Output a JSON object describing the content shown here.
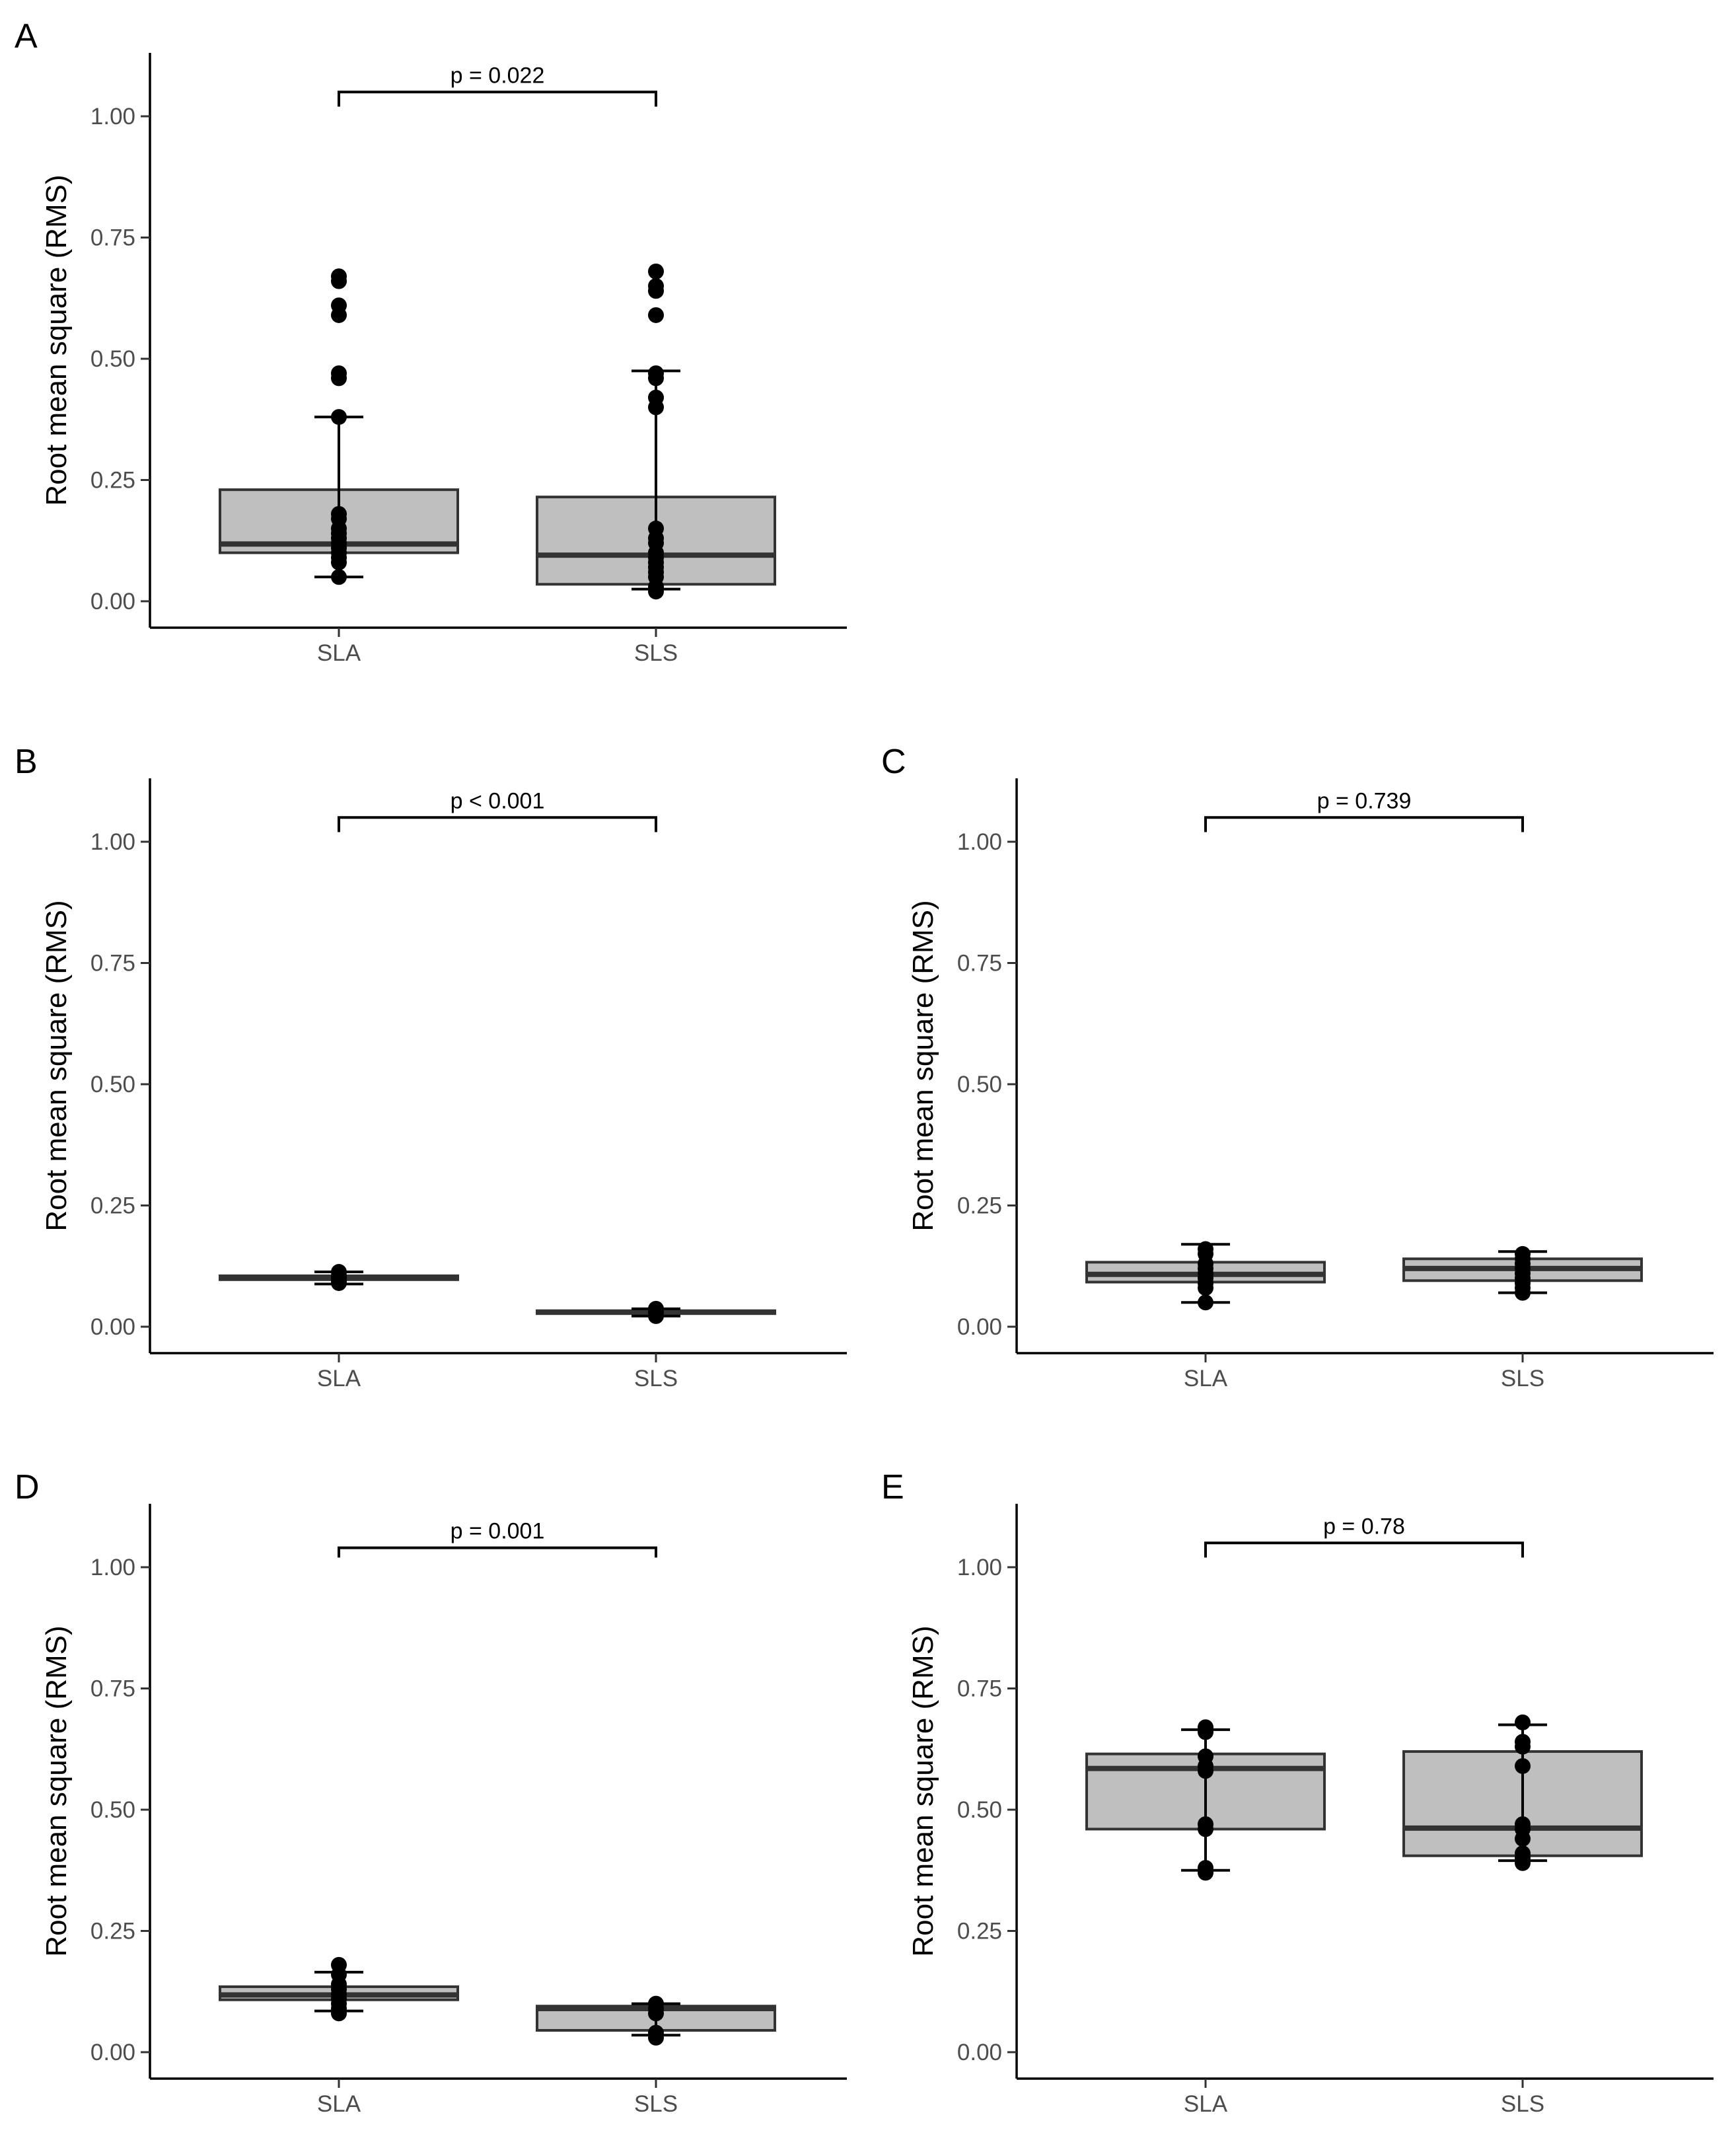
{
  "figure": {
    "y_axis_label": "Root mean square (RMS)",
    "ylim": [
      -0.05,
      1.13
    ],
    "y_ticks": [
      0.0,
      0.25,
      0.5,
      0.75,
      1.0
    ],
    "y_tick_labels": [
      "0.00",
      "0.25",
      "0.50",
      "0.75",
      "1.00"
    ],
    "box_fill": "#bfbfbf",
    "box_stroke": "#333333",
    "dot_color": "#000000",
    "background": "#ffffff"
  },
  "chart_data": [
    {
      "type": "boxplot",
      "panel": "A",
      "xlabel": "",
      "ylabel": "Root mean square (RMS)",
      "categories": [
        "SLA",
        "SLS"
      ],
      "ylim": [
        -0.05,
        1.13
      ],
      "significance": {
        "label": "p = 0.022",
        "y": 1.05,
        "drop": 1.02
      },
      "groups": [
        {
          "name": "SLA",
          "q1": 0.1,
          "median": 0.118,
          "q3": 0.23,
          "whisker_low": 0.05,
          "whisker_high": 0.38,
          "err_low": 0.05,
          "err_high": 0.38,
          "points": [
            0.66,
            0.67,
            0.61,
            0.59,
            0.47,
            0.46,
            0.38,
            0.18,
            0.17,
            0.15,
            0.14,
            0.13,
            0.12,
            0.11,
            0.1,
            0.09,
            0.08,
            0.05
          ]
        },
        {
          "name": "SLS",
          "q1": 0.035,
          "median": 0.095,
          "q3": 0.215,
          "whisker_low": 0.02,
          "whisker_high": 0.47,
          "err_low": 0.025,
          "err_high": 0.475,
          "points": [
            0.68,
            0.65,
            0.64,
            0.59,
            0.47,
            0.46,
            0.42,
            0.4,
            0.15,
            0.13,
            0.12,
            0.1,
            0.09,
            0.08,
            0.07,
            0.06,
            0.05,
            0.03,
            0.02
          ]
        }
      ]
    },
    {
      "type": "boxplot",
      "panel": "B",
      "xlabel": "",
      "ylabel": "Root mean square (RMS)",
      "categories": [
        "SLA",
        "SLS"
      ],
      "ylim": [
        -0.05,
        1.13
      ],
      "significance": {
        "label": "p  < 0.001",
        "y": 1.05,
        "drop": 1.02
      },
      "groups": [
        {
          "name": "SLA",
          "q1": 0.097,
          "median": 0.101,
          "q3": 0.105,
          "whisker_low": 0.095,
          "whisker_high": 0.107,
          "err_low": 0.088,
          "err_high": 0.113,
          "points": [
            0.113,
            0.105,
            0.1,
            0.095,
            0.09
          ]
        },
        {
          "name": "SLS",
          "q1": 0.027,
          "median": 0.03,
          "q3": 0.033,
          "whisker_low": 0.025,
          "whisker_high": 0.035,
          "err_low": 0.022,
          "err_high": 0.037,
          "points": [
            0.037,
            0.03,
            0.022
          ]
        }
      ]
    },
    {
      "type": "boxplot",
      "panel": "C",
      "xlabel": "",
      "ylabel": "Root mean square (RMS)",
      "categories": [
        "SLA",
        "SLS"
      ],
      "ylim": [
        -0.05,
        1.13
      ],
      "significance": {
        "label": "p = 0.739",
        "y": 1.05,
        "drop": 1.02
      },
      "groups": [
        {
          "name": "SLA",
          "q1": 0.092,
          "median": 0.108,
          "q3": 0.133,
          "whisker_low": 0.05,
          "whisker_high": 0.17,
          "err_low": 0.05,
          "err_high": 0.17,
          "points": [
            0.16,
            0.15,
            0.13,
            0.12,
            0.11,
            0.1,
            0.09,
            0.08,
            0.05
          ]
        },
        {
          "name": "SLS",
          "q1": 0.095,
          "median": 0.12,
          "q3": 0.14,
          "whisker_low": 0.07,
          "whisker_high": 0.155,
          "err_low": 0.07,
          "err_high": 0.155,
          "points": [
            0.15,
            0.14,
            0.13,
            0.12,
            0.11,
            0.1,
            0.09,
            0.08,
            0.07
          ]
        }
      ]
    },
    {
      "type": "boxplot",
      "panel": "D",
      "xlabel": "",
      "ylabel": "Root mean square (RMS)",
      "categories": [
        "SLA",
        "SLS"
      ],
      "ylim": [
        -0.05,
        1.13
      ],
      "significance": {
        "label": "p = 0.001",
        "y": 1.04,
        "drop": 1.02
      },
      "groups": [
        {
          "name": "SLA",
          "q1": 0.108,
          "median": 0.118,
          "q3": 0.135,
          "whisker_low": 0.085,
          "whisker_high": 0.165,
          "err_low": 0.085,
          "err_high": 0.165,
          "points": [
            0.18,
            0.16,
            0.14,
            0.13,
            0.12,
            0.11,
            0.1,
            0.09,
            0.08
          ]
        },
        {
          "name": "SLS",
          "q1": 0.045,
          "median": 0.09,
          "q3": 0.095,
          "whisker_low": 0.035,
          "whisker_high": 0.1,
          "err_low": 0.035,
          "err_high": 0.1,
          "points": [
            0.1,
            0.09,
            0.08,
            0.04,
            0.03
          ]
        }
      ]
    },
    {
      "type": "boxplot",
      "panel": "E",
      "xlabel": "",
      "ylabel": "Root mean square (RMS)",
      "categories": [
        "SLA",
        "SLS"
      ],
      "ylim": [
        -0.05,
        1.13
      ],
      "significance": {
        "label": "p = 0.78",
        "y": 1.05,
        "drop": 1.02
      },
      "groups": [
        {
          "name": "SLA",
          "q1": 0.46,
          "median": 0.585,
          "q3": 0.615,
          "whisker_low": 0.375,
          "whisker_high": 0.665,
          "err_low": 0.375,
          "err_high": 0.665,
          "points": [
            0.67,
            0.66,
            0.61,
            0.59,
            0.58,
            0.47,
            0.46,
            0.38,
            0.37
          ]
        },
        {
          "name": "SLS",
          "q1": 0.405,
          "median": 0.462,
          "q3": 0.62,
          "whisker_low": 0.395,
          "whisker_high": 0.675,
          "err_low": 0.395,
          "err_high": 0.675,
          "points": [
            0.68,
            0.64,
            0.63,
            0.59,
            0.47,
            0.46,
            0.44,
            0.41,
            0.4,
            0.39
          ]
        }
      ]
    }
  ]
}
